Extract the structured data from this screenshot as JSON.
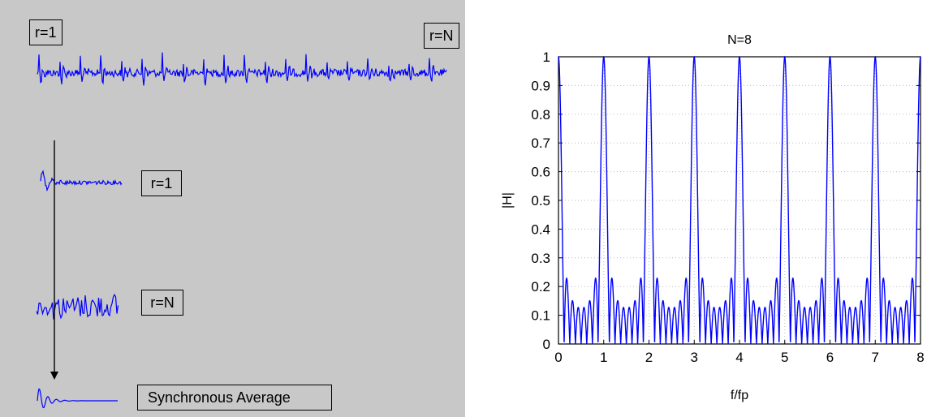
{
  "diagram": {
    "top_start_label": "r=1",
    "top_end_label": "r=N",
    "segment_first_label": "r=1",
    "segment_last_label": "r=N",
    "result_label": "Synchronous Average",
    "trace_color": "#0000ff",
    "panel_color": "#c8c8c8"
  },
  "chart_data": {
    "type": "line",
    "title": "N=8",
    "xlabel": "f/fp",
    "ylabel": "|H|",
    "xlim": [
      0,
      8
    ],
    "ylim": [
      0,
      1
    ],
    "x_ticks": [
      "0",
      "1",
      "2",
      "3",
      "4",
      "5",
      "6",
      "7",
      "8"
    ],
    "y_ticks": [
      "0",
      "0.1",
      "0.2",
      "0.3",
      "0.4",
      "0.5",
      "0.6",
      "0.7",
      "0.8",
      "0.9",
      "1"
    ],
    "grid": true,
    "N": 8,
    "peaks": [
      {
        "x": 0,
        "y": 1
      },
      {
        "x": 1,
        "y": 1
      },
      {
        "x": 2,
        "y": 1
      },
      {
        "x": 3,
        "y": 1
      },
      {
        "x": 4,
        "y": 1
      },
      {
        "x": 5,
        "y": 1
      },
      {
        "x": 6,
        "y": 1
      },
      {
        "x": 7,
        "y": 1
      },
      {
        "x": 8,
        "y": 1
      }
    ],
    "color": "#0000ff"
  }
}
